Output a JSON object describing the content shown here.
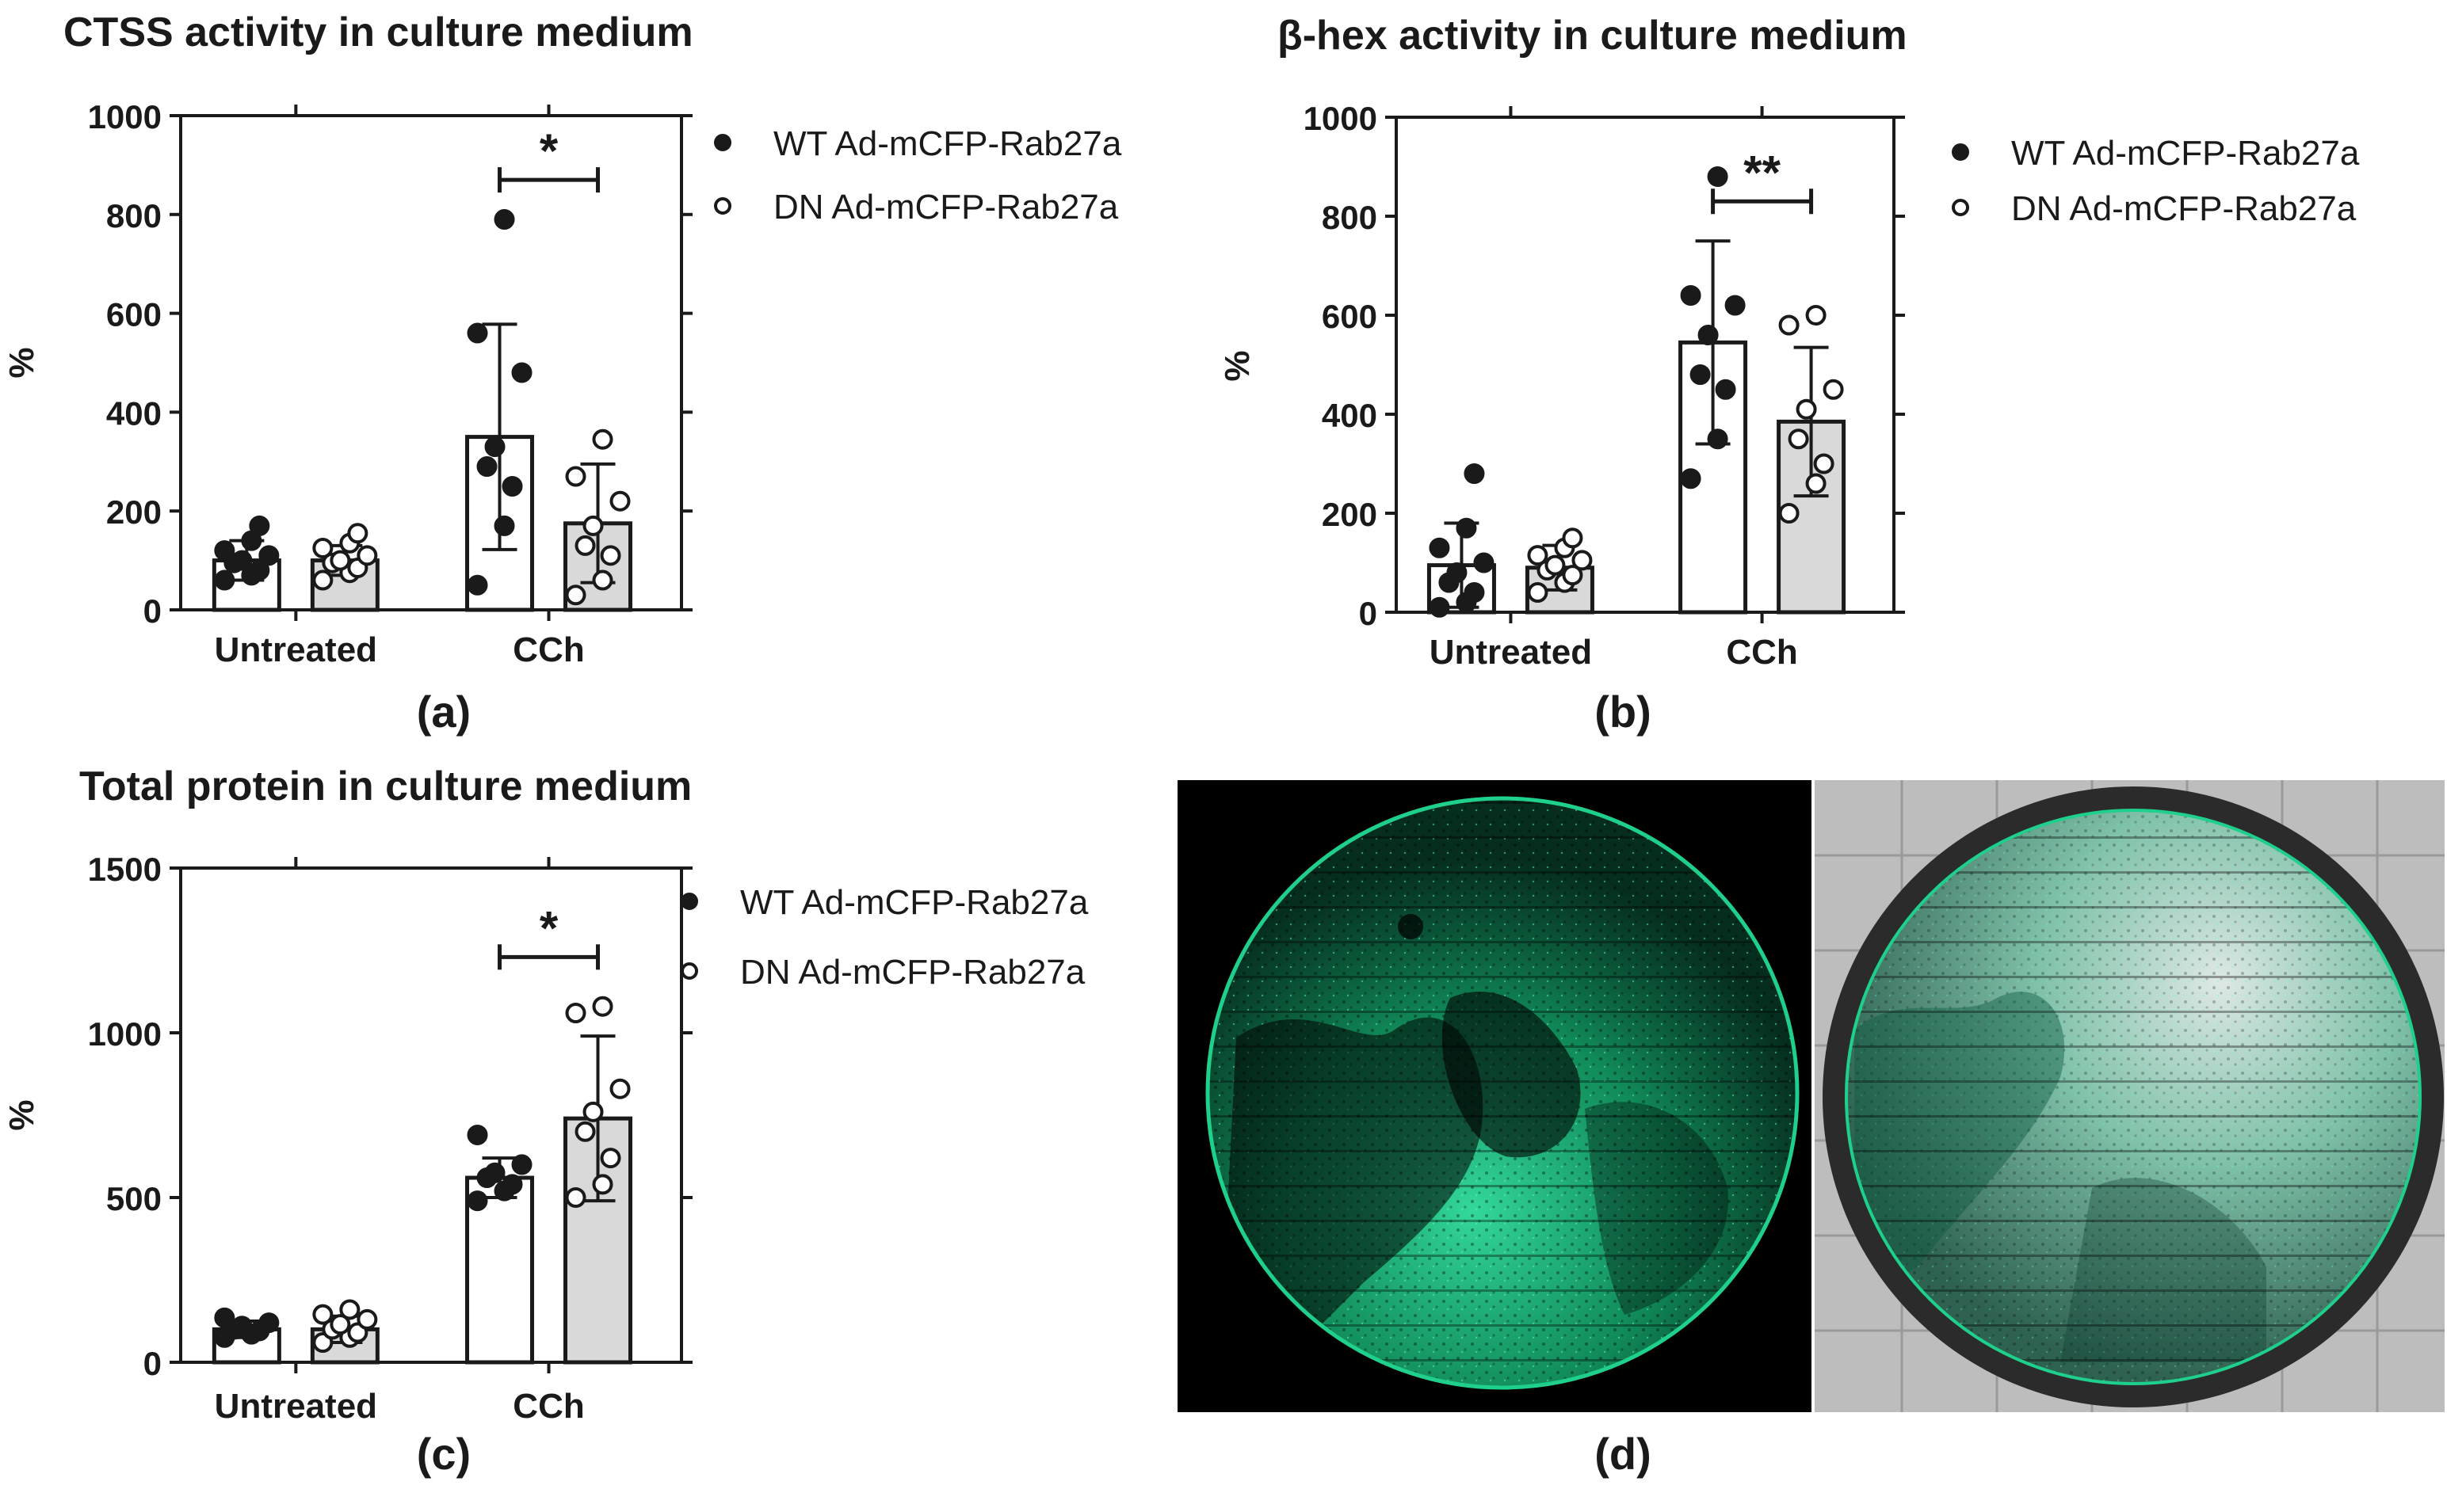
{
  "legend": {
    "wt": "WT Ad-mCFP-Rab27a",
    "dn": "DN Ad-mCFP-Rab27a"
  },
  "colors": {
    "axis": "#1a1a1a",
    "wt_fill": "#ffffff",
    "dn_fill": "#d9d9d9",
    "text": "#1a1a1a",
    "fluor": "#1fcf8c"
  },
  "images": {
    "label": "(d)",
    "left_description": "fluorescence",
    "right_description": "brightfield-overlay"
  },
  "chart_data": [
    {
      "panel": "(a)",
      "type": "bar",
      "title": "CTSS activity in culture medium",
      "ylabel": "%",
      "xlabel": "",
      "ylim": [
        0,
        1000
      ],
      "yticks": [
        0,
        200,
        400,
        600,
        800,
        1000
      ],
      "categories": [
        "Untreated",
        "CCh"
      ],
      "series": [
        {
          "name": "WT Ad-mCFP-Rab27a",
          "values": [
            100,
            350
          ],
          "sd": [
            40,
            228
          ],
          "points": [
            [
              60,
              70,
              80,
              95,
              100,
              110,
              120,
              140,
              170
            ],
            [
              50,
              170,
              250,
              290,
              330,
              480,
              560,
              790
            ]
          ]
        },
        {
          "name": "DN Ad-mCFP-Rab27a",
          "values": [
            100,
            175
          ],
          "sd": [
            30,
            120
          ],
          "points": [
            [
              60,
              75,
              85,
              95,
              100,
              110,
              125,
              135,
              155
            ],
            [
              30,
              60,
              110,
              130,
              170,
              220,
              270,
              345
            ]
          ]
        }
      ],
      "significance": [
        {
          "category": "CCh",
          "label": "*",
          "y": 870
        }
      ]
    },
    {
      "panel": "(b)",
      "type": "bar",
      "title": "β-hex activity in culture medium",
      "ylabel": "%",
      "xlabel": "",
      "ylim": [
        0,
        1000
      ],
      "yticks": [
        0,
        200,
        400,
        600,
        800,
        1000
      ],
      "categories": [
        "Untreated",
        "CCh"
      ],
      "series": [
        {
          "name": "WT Ad-mCFP-Rab27a",
          "values": [
            95,
            545
          ],
          "sd": [
            85,
            205
          ],
          "points": [
            [
              10,
              20,
              40,
              60,
              80,
              100,
              130,
              170,
              280
            ],
            [
              270,
              350,
              450,
              480,
              560,
              620,
              640,
              880
            ]
          ]
        },
        {
          "name": "DN Ad-mCFP-Rab27a",
          "values": [
            90,
            385
          ],
          "sd": [
            45,
            150
          ],
          "points": [
            [
              40,
              60,
              75,
              85,
              95,
              105,
              115,
              130,
              150
            ],
            [
              200,
              260,
              300,
              350,
              410,
              450,
              580,
              600
            ]
          ]
        }
      ],
      "significance": [
        {
          "category": "CCh",
          "label": "**",
          "y": 830
        }
      ]
    },
    {
      "panel": "(c)",
      "type": "bar",
      "title": "Total protein in culture medium",
      "ylabel": "%",
      "xlabel": "",
      "ylim": [
        0,
        1500
      ],
      "yticks": [
        0,
        500,
        1000,
        1500
      ],
      "categories": [
        "Untreated",
        "CCh"
      ],
      "series": [
        {
          "name": "WT Ad-mCFP-Rab27a",
          "values": [
            100,
            560
          ],
          "sd": [
            25,
            60
          ],
          "points": [
            [
              75,
              85,
              95,
              100,
              110,
              120,
              135
            ],
            [
              490,
              520,
              540,
              560,
              575,
              600,
              690
            ]
          ]
        },
        {
          "name": "DN Ad-mCFP-Rab27a",
          "values": [
            100,
            740
          ],
          "sd": [
            40,
            250
          ],
          "points": [
            [
              60,
              75,
              90,
              100,
              115,
              130,
              145,
              160
            ],
            [
              500,
              540,
              620,
              700,
              760,
              830,
              1060,
              1080
            ]
          ]
        }
      ],
      "significance": [
        {
          "category": "CCh",
          "label": "*",
          "y": 1230
        }
      ]
    }
  ]
}
